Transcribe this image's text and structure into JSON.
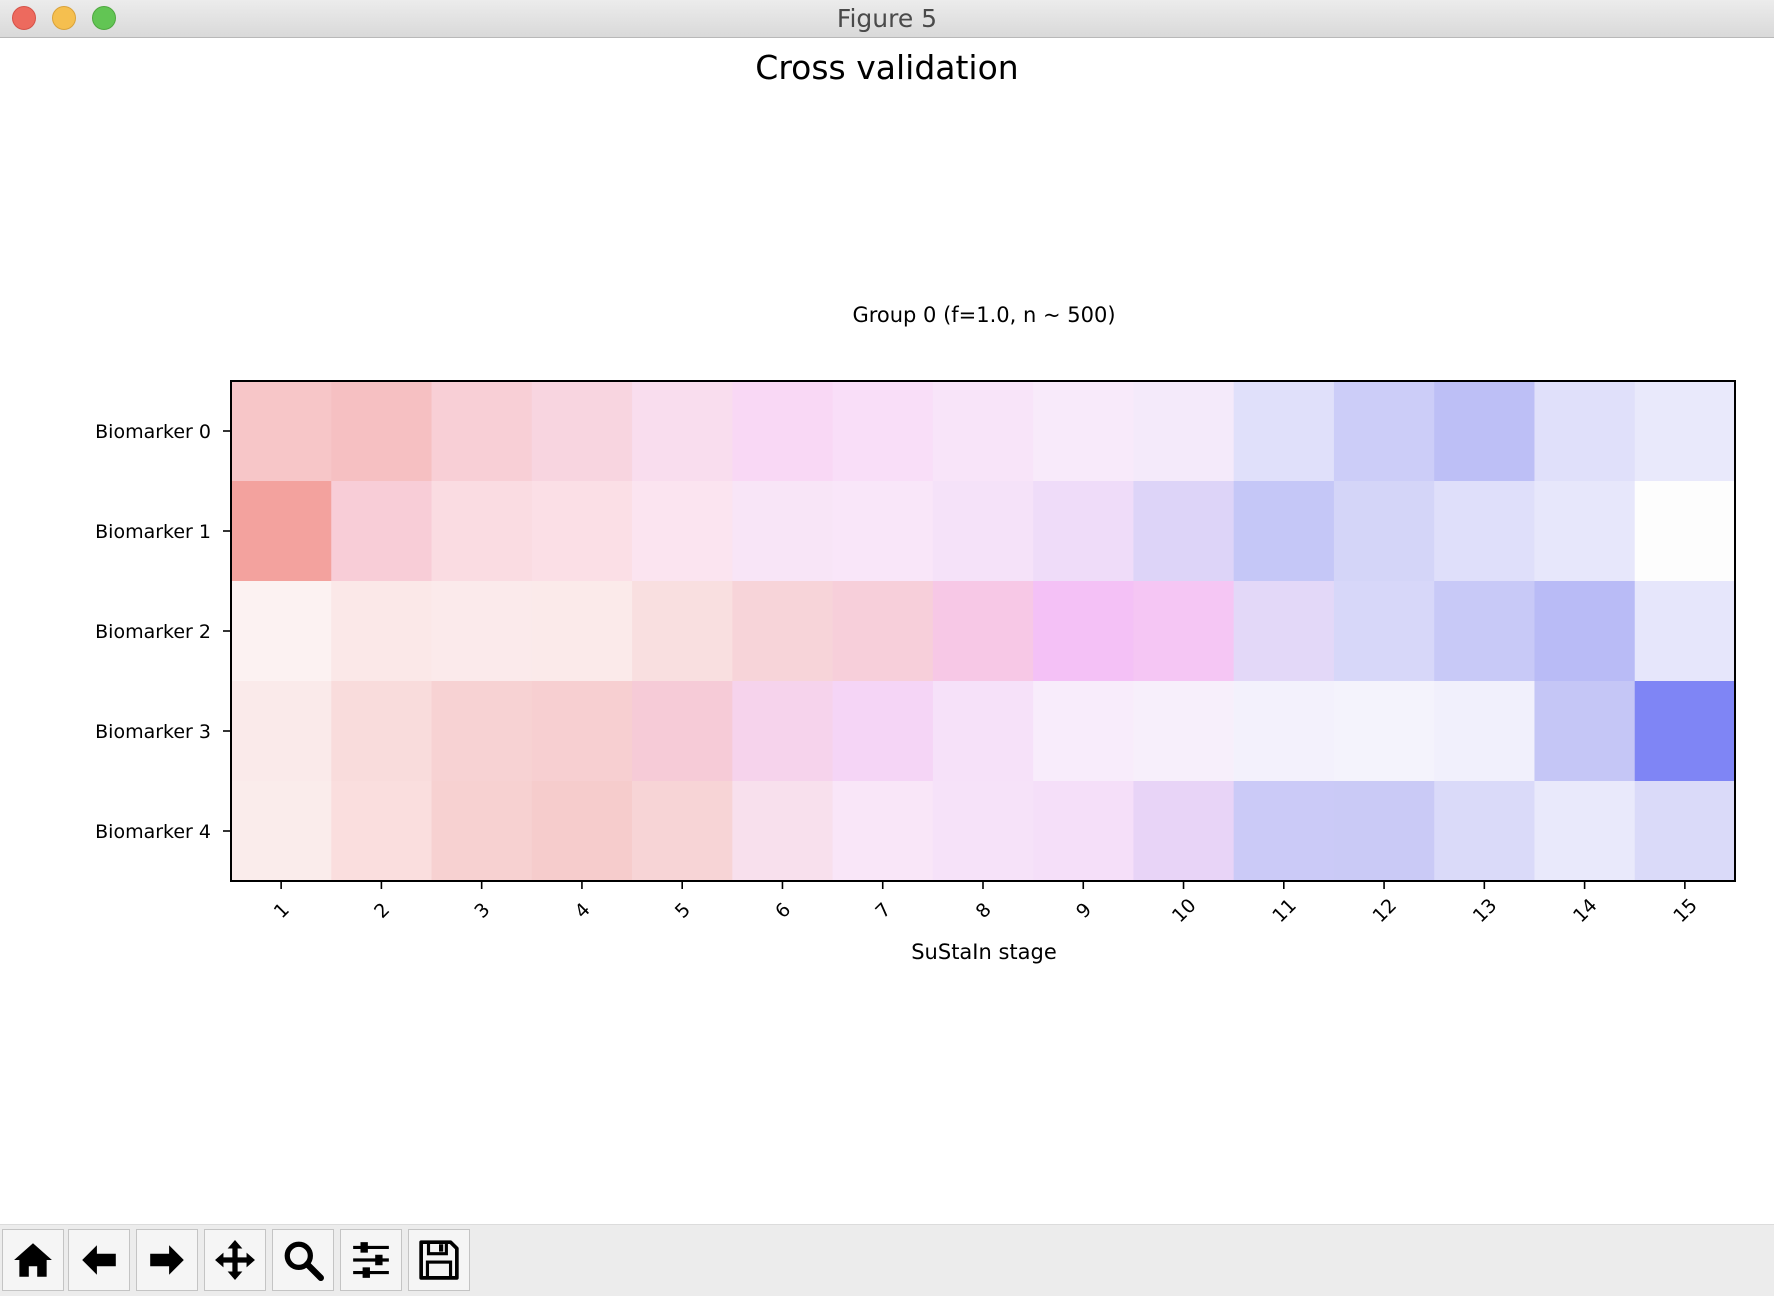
{
  "window": {
    "title": "Figure 5"
  },
  "figure": {
    "suptitle": "Cross validation"
  },
  "chart_data": {
    "type": "heatmap",
    "title": "Group 0 (f=1.0, n ~ 500)",
    "xlabel": "SuStaIn stage",
    "ylabel": "",
    "x_ticks": [
      "1",
      "2",
      "3",
      "4",
      "5",
      "6",
      "7",
      "8",
      "9",
      "10",
      "11",
      "12",
      "13",
      "14",
      "15"
    ],
    "y_ticks": [
      "Biomarker 0",
      "Biomarker 1",
      "Biomarker 2",
      "Biomarker 3",
      "Biomarker 4"
    ],
    "cell_colors": [
      [
        "#f7c6c8",
        "#f6c0c2",
        "#f8cfd6",
        "#f8d5e0",
        "#f9ddee",
        "#f9d8f5",
        "#f9def8",
        "#f8e4f9",
        "#f8eafa",
        "#f4eafa",
        "#e0e0fa",
        "#cccdf8",
        "#bdbff6",
        "#e0e0fa",
        "#e9e9fb"
      ],
      [
        "#f3a29e",
        "#f8cdd7",
        "#fadce2",
        "#fbdfe6",
        "#fbe4f0",
        "#f8e5f7",
        "#f9e6f9",
        "#f5e2f9",
        "#efdcf9",
        "#ddd4f8",
        "#c5c7f7",
        "#d4d5f8",
        "#dfdffa",
        "#e7e7fb",
        "#fdfdfd"
      ],
      [
        "#fcf2f2",
        "#fbe8e8",
        "#fbeaeb",
        "#fbeaea",
        "#f9dfe0",
        "#f7d4d9",
        "#f7cfda",
        "#f7c8e6",
        "#f4c1f6",
        "#f5c6f4",
        "#e3d8f8",
        "#d7d7f9",
        "#c8c9f7",
        "#b9bbf6",
        "#e6e6fb"
      ],
      [
        "#faeaea",
        "#f9dcdc",
        "#f7d2d3",
        "#f7cfd1",
        "#f6cbd7",
        "#f6d3ec",
        "#f5d5f6",
        "#f6e1f9",
        "#f8ecfb",
        "#f7effb",
        "#f3f1fc",
        "#f4f3fc",
        "#f1f0fc",
        "#c5c6f6",
        "#7f85f5"
      ],
      [
        "#faeceb",
        "#fadede",
        "#f7d1d1",
        "#f6cccc",
        "#f7d4d6",
        "#f8e0ed",
        "#f9e6f8",
        "#f6e2f9",
        "#f5dff9",
        "#e8d4f7",
        "#cbcaf7",
        "#cacaf6",
        "#dadaf9",
        "#e9e9fb",
        "#dadaf9"
      ]
    ],
    "grid": false
  },
  "toolbar": {
    "tools": [
      {
        "name": "home-button",
        "icon": "home-icon"
      },
      {
        "name": "back-button",
        "icon": "arrow-left-icon"
      },
      {
        "name": "forward-button",
        "icon": "arrow-right-icon"
      },
      {
        "name": "pan-button",
        "icon": "move-icon"
      },
      {
        "name": "zoom-button",
        "icon": "magnifier-icon"
      },
      {
        "name": "configure-subplots-button",
        "icon": "sliders-icon"
      },
      {
        "name": "save-button",
        "icon": "floppy-icon"
      }
    ]
  }
}
